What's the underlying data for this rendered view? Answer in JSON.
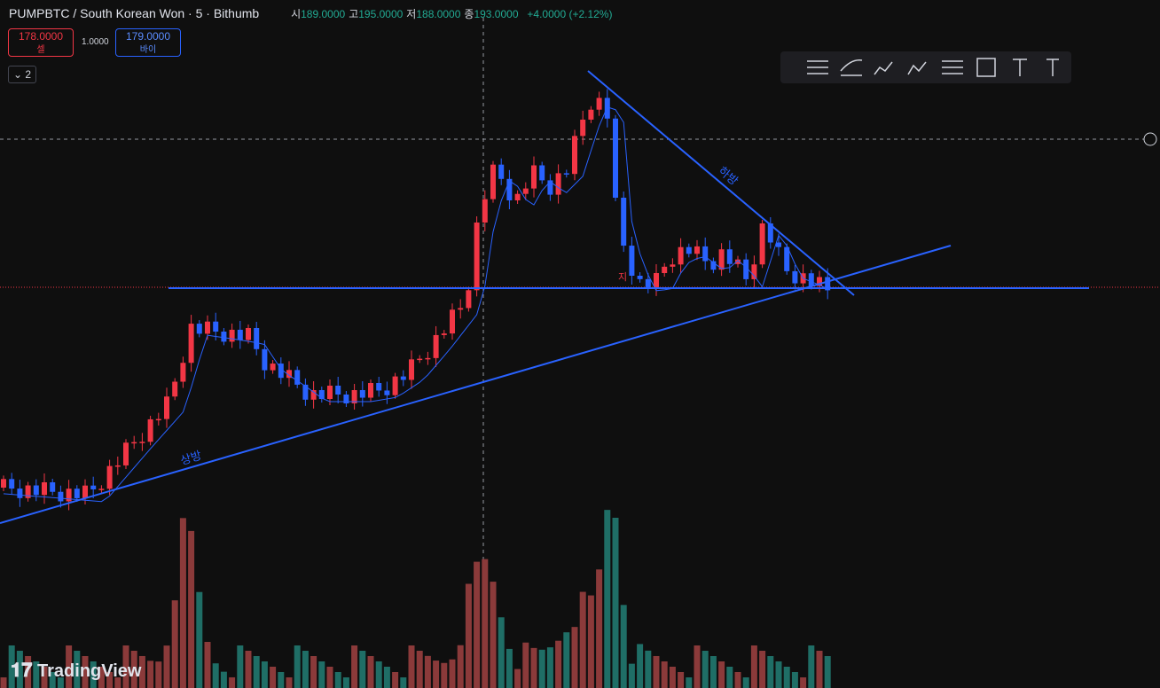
{
  "header": {
    "symbol": "PUMPBTC / South Korean Won · 5 · Bithumb",
    "ohlc": [
      {
        "label": "시",
        "value": "189.0000"
      },
      {
        "label": "고",
        "value": "195.0000"
      },
      {
        "label": "저",
        "value": "188.0000"
      },
      {
        "label": "종",
        "value": "193.0000"
      }
    ],
    "change": "+4.0000 (+2.12%)"
  },
  "trade": {
    "sell_price": "178.0000",
    "sell_label": "셀",
    "spread": "1.0000",
    "buy_price": "179.0000",
    "buy_label": "바이"
  },
  "indicators_toggle": "2",
  "annotations": {
    "up": "상방",
    "down": "하방",
    "marker": "지"
  },
  "logo": "TradingView"
}
